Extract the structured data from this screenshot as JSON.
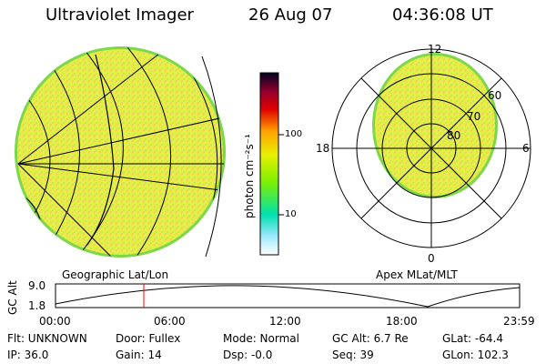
{
  "header": {
    "instrument": "Ultraviolet Imager",
    "date": "26 Aug 07",
    "time": "04:36:08 UT"
  },
  "geo_panel": {
    "label": "Geographic Lat/Lon"
  },
  "polar_panel": {
    "label": "Apex MLat/MLT",
    "mlt_labels": {
      "top": "12",
      "left": "18",
      "right": "6",
      "bottom": "0"
    },
    "lat_labels": [
      "60",
      "70",
      "80"
    ]
  },
  "colorbar": {
    "unit_label": "photon cm⁻²s⁻¹",
    "ticks": [
      "100",
      "10"
    ],
    "colors": [
      "#ffffff",
      "#7fe0ff",
      "#00e0a0",
      "#7cf000",
      "#e8f000",
      "#ffa000",
      "#e00000",
      "#900000",
      "#000020"
    ]
  },
  "altitude_plot": {
    "ylabel": "GC Alt",
    "yticks": [
      "9.0",
      "1.8"
    ],
    "xticks": [
      "00:00",
      "06:00",
      "12:00",
      "18:00",
      "23:59"
    ],
    "current_marker_hour": 4.6
  },
  "info": {
    "flt": "Flt: UNKNOWN",
    "ip": "IP: 36.0",
    "door": "Door: Fullex",
    "gain": "Gain: 14",
    "mode": "Mode: Normal",
    "dsp": "Dsp:    -0.0",
    "gcalt": "GC Alt: 6.7 Re",
    "seq": "Seq: 39",
    "glat": "GLat: -64.4",
    "glon": "GLon: 102.3"
  }
}
